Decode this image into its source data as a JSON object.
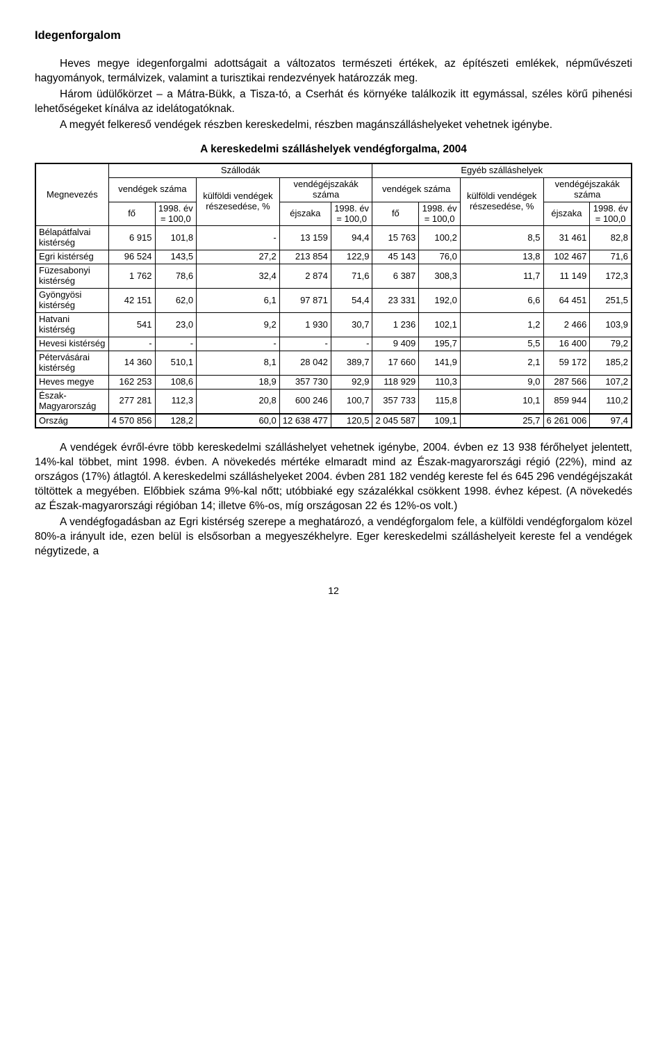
{
  "title": "Idegenforgalom",
  "paragraphs": {
    "p1": "Heves megye idegenforgalmi adottságait a változatos természeti értékek, az építészeti emlékek, népművészeti hagyományok, termálvizek, valamint a turisztikai rendezvények határozzák meg.",
    "p2": "Három üdülőkörzet – a Mátra-Bükk, a Tisza-tó, a Cserhát és környéke találkozik itt egymással, széles körű pihenési lehetőségeket kínálva az idelátogatóknak.",
    "p3": "A megyét felkereső vendégek részben kereskedelmi, részben magánszálláshelyeket vehetnek igénybe.",
    "p4": "A vendégek évről-évre több kereskedelmi szálláshelyet vehetnek igénybe, 2004. évben ez 13 938 férőhelyet jelentett, 14%-kal többet, mint 1998. évben. A növekedés mértéke elmaradt mind az Észak-magyarországi régió (22%), mind az országos (17%) átlagtól. A kereskedelmi szálláshelyeket 2004. évben 281 182 vendég kereste fel és 645 296 vendégéjszakát töltöttek a megyében. Előbbiek száma 9%-kal nőtt; utóbbiaké egy százalékkal csökkent 1998. évhez képest. (A növekedés az Észak-magyarországi régióban 14; illetve 6%-os, míg országosan 22 és 12%-os volt.)",
    "p5": "A vendégfogadásban az Egri kistérség szerepe a meghatározó, a vendégforgalom fele, a külföldi vendégforgalom közel 80%-a irányult ide, ezen belül is elsősorban a megyeszékhelyre. Eger kereskedelmi szálláshelyeit kereste fel a vendégek négytizede, a"
  },
  "table": {
    "caption": "A kereskedelmi szálláshelyek vendégforgalma, 2004",
    "header": {
      "col_megnevezes": "Megnevezés",
      "group_szallodak": "Szállodák",
      "group_egyeb": "Egyéb szálláshelyek",
      "sub_vendegek": "vendégek száma",
      "sub_kulfoldi": "külföldi vendégek részesedése, %",
      "sub_vendegejsz": "vendégéjszakák száma",
      "col_fo": "fő",
      "col_1998": "1998. év = 100,0",
      "col_ejszaka": "éjszaka"
    },
    "rows": [
      {
        "label": "Bélapátfalvai kistérség",
        "c1": "6 915",
        "c2": "101,8",
        "c3": "-",
        "c4": "13 159",
        "c5": "94,4",
        "c6": "15 763",
        "c7": "100,2",
        "c8": "8,5",
        "c9": "31 461",
        "c10": "82,8"
      },
      {
        "label": "Egri kistérség",
        "c1": "96 524",
        "c2": "143,5",
        "c3": "27,2",
        "c4": "213 854",
        "c5": "122,9",
        "c6": "45 143",
        "c7": "76,0",
        "c8": "13,8",
        "c9": "102 467",
        "c10": "71,6"
      },
      {
        "label": "Füzesabonyi kistérség",
        "c1": "1 762",
        "c2": "78,6",
        "c3": "32,4",
        "c4": "2 874",
        "c5": "71,6",
        "c6": "6 387",
        "c7": "308,3",
        "c8": "11,7",
        "c9": "11 149",
        "c10": "172,3"
      },
      {
        "label": "Gyöngyösi kistérség",
        "c1": "42 151",
        "c2": "62,0",
        "c3": "6,1",
        "c4": "97 871",
        "c5": "54,4",
        "c6": "23 331",
        "c7": "192,0",
        "c8": "6,6",
        "c9": "64 451",
        "c10": "251,5"
      },
      {
        "label": "Hatvani kistérség",
        "c1": "541",
        "c2": "23,0",
        "c3": "9,2",
        "c4": "1 930",
        "c5": "30,7",
        "c6": "1 236",
        "c7": "102,1",
        "c8": "1,2",
        "c9": "2 466",
        "c10": "103,9"
      },
      {
        "label": "Hevesi kistérség",
        "c1": "-",
        "c2": "-",
        "c3": "-",
        "c4": "-",
        "c5": "-",
        "c6": "9 409",
        "c7": "195,7",
        "c8": "5,5",
        "c9": "16 400",
        "c10": "79,2"
      },
      {
        "label": "Pétervásárai kistérség",
        "c1": "14 360",
        "c2": "510,1",
        "c3": "8,1",
        "c4": "28 042",
        "c5": "389,7",
        "c6": "17 660",
        "c7": "141,9",
        "c8": "2,1",
        "c9": "59 172",
        "c10": "185,2"
      },
      {
        "label": "Heves megye",
        "c1": "162 253",
        "c2": "108,6",
        "c3": "18,9",
        "c4": "357 730",
        "c5": "92,9",
        "c6": "118 929",
        "c7": "110,3",
        "c8": "9,0",
        "c9": "287 566",
        "c10": "107,2"
      },
      {
        "label": "Észak-Magyarország",
        "c1": "277 281",
        "c2": "112,3",
        "c3": "20,8",
        "c4": "600 246",
        "c5": "100,7",
        "c6": "357 733",
        "c7": "115,8",
        "c8": "10,1",
        "c9": "859 944",
        "c10": "110,2"
      }
    ],
    "summary_row": {
      "label": "Ország",
      "c1": "4 570 856",
      "c2": "128,2",
      "c3": "60,0",
      "c4": "12 638 477",
      "c5": "120,5",
      "c6": "2 045 587",
      "c7": "109,1",
      "c8": "25,7",
      "c9": "6 261 006",
      "c10": "97,4"
    }
  },
  "page_number": "12"
}
